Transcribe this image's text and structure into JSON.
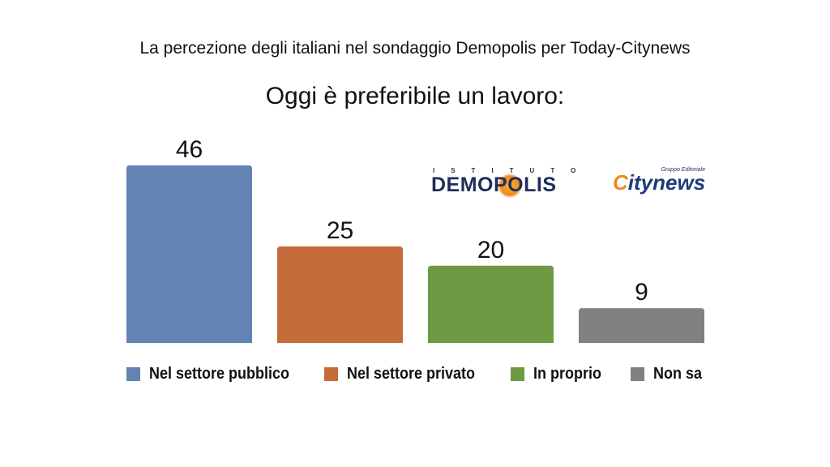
{
  "header": {
    "subtitle": "La percezione degli italiani nel sondaggio Demopolis per Today-Citynews",
    "title": "Oggi è preferibile un lavoro:"
  },
  "logos": {
    "demopolis_top": "ISTITUTO",
    "demopolis_word": "DEMOPOLIS",
    "citynews_sub": "Gruppo Editoriale",
    "citynews_word": "Citynews"
  },
  "chart_data": {
    "type": "bar",
    "title": "Oggi è preferibile un lavoro:",
    "categories": [
      "Nel settore pubblico",
      "Nel settore privato",
      "In proprio",
      "Non sa"
    ],
    "values": [
      46,
      25,
      20,
      9
    ],
    "value_labels": [
      "46",
      "25",
      "20",
      "9"
    ],
    "colors": [
      "#6283b3",
      "#c46b3a",
      "#6e9a44",
      "#808080"
    ],
    "ylim": [
      0,
      46
    ],
    "grid": false,
    "legend": "bottom"
  }
}
